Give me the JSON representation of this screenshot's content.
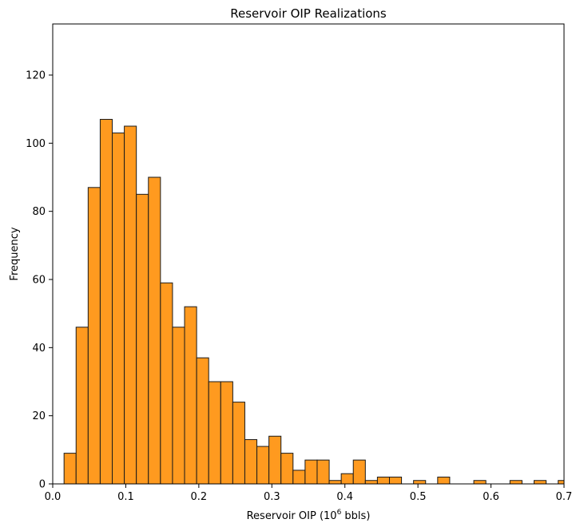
{
  "chart_data": {
    "type": "bar",
    "title": "Reservoir OIP Realizations",
    "xlabel_prefix": "Reservoir OIP (10",
    "xlabel_sup": "6",
    "xlabel_suffix": " bbls)",
    "ylabel": "Frequency",
    "xlim": [
      0.0,
      0.7
    ],
    "ylim": [
      0,
      135
    ],
    "bin_width": 0.0165,
    "bin_start": 0.0155,
    "values": [
      9,
      46,
      87,
      107,
      103,
      105,
      85,
      90,
      59,
      46,
      52,
      37,
      30,
      30,
      24,
      13,
      11,
      14,
      9,
      4,
      7,
      7,
      1,
      3,
      7,
      1,
      2,
      2,
      0,
      1,
      0,
      2,
      0,
      0,
      1,
      0,
      0,
      1,
      0,
      1,
      0,
      1
    ],
    "x_ticks": [
      "0.0",
      "0.1",
      "0.2",
      "0.3",
      "0.4",
      "0.5",
      "0.6",
      "0.7"
    ],
    "y_ticks": [
      "0",
      "20",
      "40",
      "60",
      "80",
      "100",
      "120"
    ],
    "bar_color": "#ff9a1f",
    "edge_color": "#1a1a1a",
    "grid": false,
    "legend": "none"
  }
}
